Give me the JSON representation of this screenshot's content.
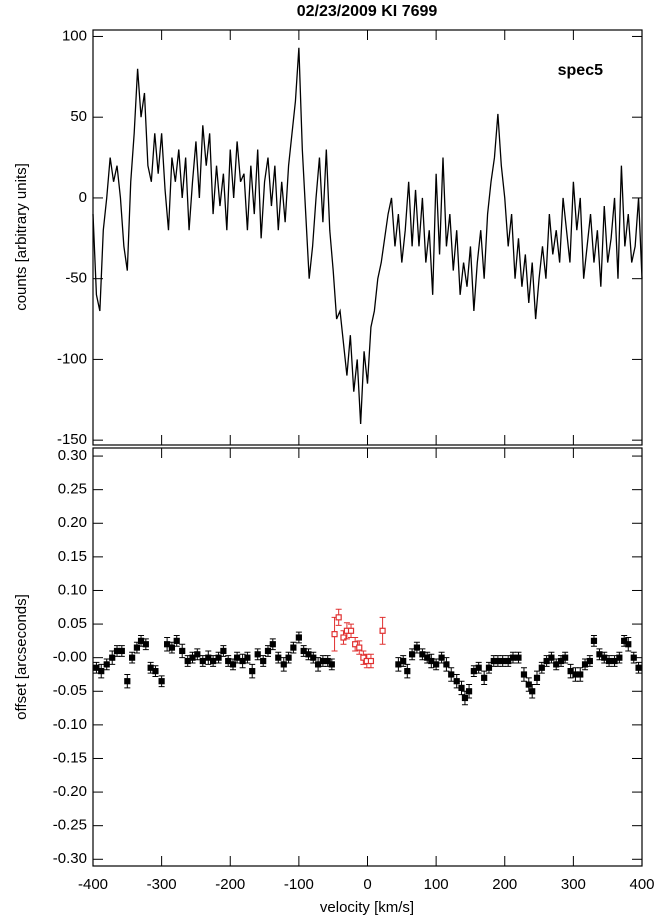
{
  "chart_data": [
    {
      "type": "line",
      "title": "02/23/2009 KI 7699",
      "annotation": "spec5",
      "ylabel": "counts [arbitrary units]",
      "xlim": [
        -400,
        400
      ],
      "ylim": [
        -153,
        104
      ],
      "yticks": [
        100,
        50,
        0,
        -50,
        -100,
        -150
      ],
      "x": [
        -400,
        -395,
        -390,
        -385,
        -380,
        -375,
        -370,
        -365,
        -360,
        -355,
        -350,
        -345,
        -340,
        -335,
        -330,
        -325,
        -320,
        -315,
        -310,
        -305,
        -300,
        -295,
        -290,
        -285,
        -280,
        -275,
        -270,
        -265,
        -260,
        -255,
        -250,
        -245,
        -240,
        -235,
        -230,
        -225,
        -220,
        -215,
        -210,
        -205,
        -200,
        -195,
        -190,
        -185,
        -180,
        -175,
        -170,
        -165,
        -160,
        -155,
        -150,
        -145,
        -140,
        -135,
        -130,
        -125,
        -120,
        -115,
        -110,
        -105,
        -100,
        -95,
        -90,
        -85,
        -80,
        -75,
        -70,
        -65,
        -60,
        -55,
        -50,
        -45,
        -40,
        -35,
        -30,
        -25,
        -20,
        -15,
        -10,
        -5,
        0,
        5,
        10,
        15,
        20,
        25,
        30,
        35,
        40,
        45,
        50,
        55,
        60,
        65,
        70,
        75,
        80,
        85,
        90,
        95,
        100,
        105,
        110,
        115,
        120,
        125,
        130,
        135,
        140,
        145,
        150,
        155,
        160,
        165,
        170,
        175,
        180,
        185,
        190,
        195,
        200,
        205,
        210,
        215,
        220,
        225,
        230,
        235,
        240,
        245,
        250,
        255,
        260,
        265,
        270,
        275,
        280,
        285,
        290,
        295,
        300,
        305,
        310,
        315,
        320,
        325,
        330,
        335,
        340,
        345,
        350,
        355,
        360,
        365,
        370,
        375,
        380,
        385,
        390,
        395,
        400
      ],
      "series": [
        {
          "color": "#000000",
          "values": [
            -10,
            -60,
            -70,
            -20,
            0,
            25,
            10,
            20,
            0,
            -30,
            -45,
            10,
            40,
            80,
            50,
            65,
            20,
            10,
            40,
            15,
            40,
            5,
            -20,
            25,
            10,
            30,
            0,
            25,
            -20,
            10,
            35,
            0,
            45,
            20,
            40,
            -10,
            20,
            -5,
            15,
            -20,
            30,
            0,
            35,
            10,
            15,
            -20,
            20,
            -10,
            30,
            -25,
            10,
            25,
            -5,
            20,
            -20,
            10,
            -15,
            20,
            40,
            60,
            93,
            30,
            -10,
            -50,
            -30,
            0,
            25,
            -15,
            30,
            -20,
            -45,
            -75,
            -70,
            -90,
            -110,
            -85,
            -120,
            -100,
            -140,
            -95,
            -115,
            -80,
            -70,
            -50,
            -40,
            -25,
            -10,
            0,
            -30,
            -10,
            -40,
            -20,
            10,
            -30,
            5,
            -30,
            0,
            -40,
            -20,
            -60,
            15,
            -35,
            25,
            -30,
            -10,
            -45,
            -20,
            -60,
            -40,
            -55,
            -30,
            -70,
            -40,
            -20,
            -50,
            -10,
            10,
            25,
            52,
            20,
            0,
            -30,
            -10,
            -50,
            -25,
            -55,
            -35,
            -65,
            -40,
            -75,
            -50,
            -30,
            -50,
            -10,
            -35,
            -20,
            -40,
            0,
            -20,
            -40,
            10,
            -20,
            0,
            -50,
            -30,
            -10,
            -40,
            -20,
            -55,
            -5,
            -40,
            -25,
            0,
            -50,
            20,
            -30,
            -10,
            -40,
            -30,
            0,
            -50
          ]
        }
      ]
    },
    {
      "type": "scatter",
      "xlabel": "velocity [km/s]",
      "ylabel": "offset [arcseconds]",
      "xlim": [
        -400,
        400
      ],
      "ylim": [
        -0.31,
        0.312
      ],
      "xticks": [
        -400,
        -300,
        -200,
        -100,
        0,
        100,
        200,
        300,
        400
      ],
      "yticks": [
        {
          "value": 0.3,
          "label": "0.30"
        },
        {
          "value": 0.25,
          "label": "0.25"
        },
        {
          "value": 0.2,
          "label": "0.20"
        },
        {
          "value": 0.15,
          "label": "0.15"
        },
        {
          "value": 0.1,
          "label": "0.10"
        },
        {
          "value": 0.05,
          "label": "0.05"
        },
        {
          "value": 0,
          "label": "-0.00"
        },
        {
          "value": -0.05,
          "label": "-0.05"
        },
        {
          "value": -0.1,
          "label": "-0.10"
        },
        {
          "value": -0.15,
          "label": "-0.15"
        },
        {
          "value": -0.2,
          "label": "-0.20"
        },
        {
          "value": -0.25,
          "label": "-0.25"
        },
        {
          "value": -0.3,
          "label": "-0.30"
        }
      ],
      "series": [
        {
          "color": "#000000",
          "x": [
            -395,
            -388,
            -380,
            -372,
            -365,
            -358,
            -350,
            -343,
            -336,
            -330,
            -323,
            -316,
            -309,
            -300,
            -292,
            -285,
            -278,
            -270,
            -262,
            -255,
            -248,
            -240,
            -232,
            -225,
            -217,
            -210,
            -203,
            -196,
            -190,
            -182,
            -175,
            -168,
            -160,
            -152,
            -145,
            -138,
            -130,
            -122,
            -115,
            -108,
            -100,
            -93,
            -86,
            -79,
            -72,
            -65,
            -58,
            -52,
            45,
            52,
            58,
            65,
            72,
            80,
            87,
            93,
            100,
            108,
            115,
            122,
            130,
            137,
            142,
            148,
            155,
            162,
            170,
            177,
            184,
            190,
            197,
            205,
            212,
            220,
            228,
            235,
            240,
            247,
            254,
            261,
            268,
            275,
            282,
            288,
            296,
            303,
            310,
            317,
            324,
            330,
            338,
            345,
            352,
            360,
            367,
            374,
            380,
            388,
            395
          ],
          "values": [
            -0.015,
            -0.02,
            -0.01,
            0.0,
            0.01,
            0.01,
            -0.035,
            0.0,
            0.015,
            0.025,
            0.02,
            -0.015,
            -0.02,
            -0.035,
            0.02,
            0.015,
            0.025,
            0.01,
            -0.005,
            0.0,
            0.005,
            -0.005,
            0.0,
            -0.005,
            0.0,
            0.01,
            -0.005,
            -0.01,
            0.0,
            -0.005,
            0.0,
            -0.02,
            0.005,
            -0.005,
            0.01,
            0.02,
            0.0,
            -0.01,
            0.0,
            0.015,
            0.03,
            0.01,
            0.005,
            0.0,
            -0.01,
            -0.005,
            -0.005,
            -0.01,
            -0.01,
            -0.005,
            -0.02,
            0.005,
            0.015,
            0.005,
            0.0,
            -0.005,
            -0.01,
            0.0,
            -0.01,
            -0.025,
            -0.035,
            -0.045,
            -0.06,
            -0.05,
            -0.02,
            -0.015,
            -0.03,
            -0.015,
            -0.005,
            -0.005,
            -0.005,
            -0.005,
            0.0,
            0.0,
            -0.025,
            -0.04,
            -0.05,
            -0.03,
            -0.015,
            -0.005,
            0.0,
            -0.01,
            -0.005,
            0.0,
            -0.02,
            -0.025,
            -0.025,
            -0.01,
            -0.005,
            0.025,
            0.005,
            0.0,
            -0.005,
            -0.005,
            0.0,
            0.025,
            0.02,
            0.0,
            -0.015
          ],
          "errors": [
            0.008,
            0.01,
            0.008,
            0.01,
            0.008,
            0.008,
            0.01,
            0.008,
            0.008,
            0.008,
            0.008,
            0.008,
            0.008,
            0.008,
            0.01,
            0.008,
            0.008,
            0.01,
            0.008,
            0.008,
            0.008,
            0.008,
            0.01,
            0.008,
            0.008,
            0.008,
            0.008,
            0.008,
            0.008,
            0.01,
            0.008,
            0.01,
            0.008,
            0.008,
            0.008,
            0.008,
            0.008,
            0.01,
            0.008,
            0.008,
            0.008,
            0.008,
            0.008,
            0.008,
            0.01,
            0.008,
            0.008,
            0.008,
            0.01,
            0.008,
            0.01,
            0.008,
            0.008,
            0.008,
            0.008,
            0.01,
            0.008,
            0.008,
            0.01,
            0.01,
            0.01,
            0.01,
            0.01,
            0.01,
            0.008,
            0.008,
            0.01,
            0.008,
            0.008,
            0.008,
            0.008,
            0.008,
            0.008,
            0.008,
            0.01,
            0.01,
            0.01,
            0.01,
            0.008,
            0.008,
            0.008,
            0.008,
            0.008,
            0.008,
            0.01,
            0.01,
            0.01,
            0.008,
            0.008,
            0.008,
            0.008,
            0.008,
            0.008,
            0.008,
            0.008,
            0.008,
            0.01,
            0.008,
            0.008
          ]
        },
        {
          "color": "#e03030",
          "marker": "open",
          "x": [
            -48,
            -42,
            -35,
            -30,
            -24,
            -18,
            -12,
            -6,
            -1,
            5,
            22
          ],
          "values": [
            0.035,
            0.06,
            0.03,
            0.04,
            0.04,
            0.02,
            0.015,
            0.0,
            -0.005,
            -0.005,
            0.04
          ],
          "errors": [
            0.025,
            0.012,
            0.01,
            0.012,
            0.01,
            0.01,
            0.01,
            0.01,
            0.01,
            0.01,
            0.02
          ]
        }
      ]
    }
  ]
}
